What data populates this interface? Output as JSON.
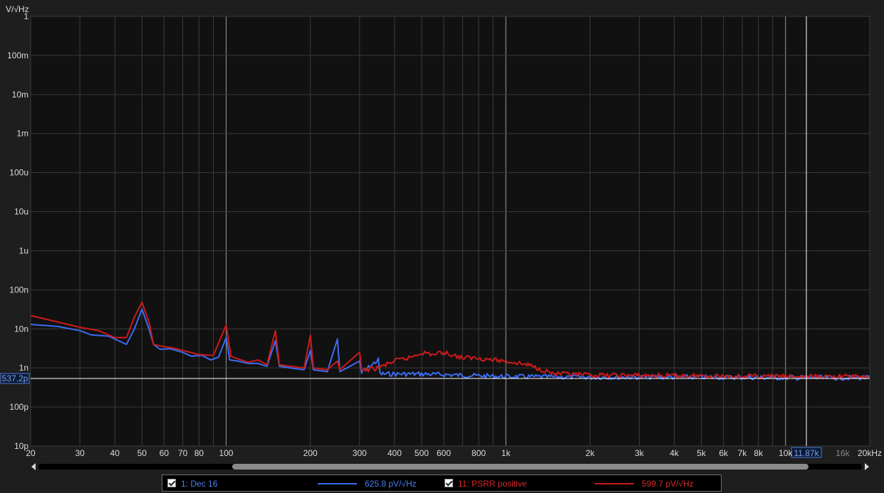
{
  "chart_data": {
    "type": "line",
    "title": "",
    "ylabel": "V/√Hz",
    "xlabel": "",
    "x_scale": "log",
    "y_scale": "log",
    "xlim": [
      20,
      20000
    ],
    "ylim": [
      1e-11,
      1
    ],
    "grid": true,
    "x_ticks": [
      {
        "value": 20,
        "label": "20"
      },
      {
        "value": 30,
        "label": "30"
      },
      {
        "value": 40,
        "label": "40"
      },
      {
        "value": 50,
        "label": "50"
      },
      {
        "value": 60,
        "label": "60"
      },
      {
        "value": 70,
        "label": "70"
      },
      {
        "value": 80,
        "label": "80"
      },
      {
        "value": 100,
        "label": "100"
      },
      {
        "value": 200,
        "label": "200"
      },
      {
        "value": 300,
        "label": "300"
      },
      {
        "value": 400,
        "label": "400"
      },
      {
        "value": 500,
        "label": "500"
      },
      {
        "value": 600,
        "label": "600"
      },
      {
        "value": 800,
        "label": "800"
      },
      {
        "value": 1000,
        "label": "1k"
      },
      {
        "value": 2000,
        "label": "2k"
      },
      {
        "value": 3000,
        "label": "3k"
      },
      {
        "value": 4000,
        "label": "4k"
      },
      {
        "value": 5000,
        "label": "5k"
      },
      {
        "value": 6000,
        "label": "6k"
      },
      {
        "value": 7000,
        "label": "7k"
      },
      {
        "value": 8000,
        "label": "8k"
      },
      {
        "value": 10000,
        "label": "10k"
      },
      {
        "value": 16000,
        "label": "16k"
      },
      {
        "value": 20000,
        "label": "20kHz"
      }
    ],
    "y_ticks": [
      {
        "value": 1,
        "label": "1"
      },
      {
        "value": 0.1,
        "label": "100m"
      },
      {
        "value": 0.01,
        "label": "10m"
      },
      {
        "value": 0.001,
        "label": "1m"
      },
      {
        "value": 0.0001,
        "label": "100u"
      },
      {
        "value": 1e-05,
        "label": "10u"
      },
      {
        "value": 1e-06,
        "label": "1u"
      },
      {
        "value": 1e-07,
        "label": "100n"
      },
      {
        "value": 1e-08,
        "label": "10n"
      },
      {
        "value": 1e-09,
        "label": "1n"
      },
      {
        "value": 1e-10,
        "label": "100p"
      },
      {
        "value": 1e-11,
        "label": "10p"
      }
    ],
    "cursor": {
      "x": 11870,
      "x_label": "11.87k",
      "y": 5.372e-10,
      "y_label": "537.2p"
    },
    "series": [
      {
        "name": "1: Dec 16",
        "color": "#3b6cf0",
        "points": [
          [
            20,
            1.3e-08
          ],
          [
            25,
            1.15e-08
          ],
          [
            30,
            9e-09
          ],
          [
            33,
            7e-09
          ],
          [
            38,
            6.5e-09
          ],
          [
            44,
            4e-09
          ],
          [
            47,
            1e-08
          ],
          [
            50,
            3.2e-08
          ],
          [
            53,
            1e-08
          ],
          [
            55,
            4e-09
          ],
          [
            58,
            3e-09
          ],
          [
            63,
            3.1e-09
          ],
          [
            70,
            2.5e-09
          ],
          [
            75,
            2e-09
          ],
          [
            82,
            2.1e-09
          ],
          [
            88,
            1.6e-09
          ],
          [
            94,
            1.9e-09
          ],
          [
            100,
            6e-09
          ],
          [
            103,
            1.6e-09
          ],
          [
            110,
            1.5e-09
          ],
          [
            120,
            1.3e-09
          ],
          [
            130,
            1.3e-09
          ],
          [
            140,
            1.1e-09
          ],
          [
            150,
            5e-09
          ],
          [
            155,
            1.1e-09
          ],
          [
            170,
            1e-09
          ],
          [
            190,
            9e-10
          ],
          [
            200,
            2.8e-09
          ],
          [
            205,
            9e-10
          ],
          [
            230,
            8e-10
          ],
          [
            250,
            5.5e-09
          ],
          [
            255,
            8e-10
          ],
          [
            300,
            1.5e-09
          ],
          [
            305,
            7.5e-10
          ],
          [
            350,
            1.6e-09
          ],
          [
            355,
            7e-10
          ],
          [
            400,
            7e-10
          ],
          [
            500,
            7e-10
          ],
          [
            700,
            6.5e-10
          ],
          [
            1000,
            6e-10
          ],
          [
            2000,
            5.8e-10
          ],
          [
            5000,
            5.8e-10
          ],
          [
            10000,
            5.6e-10
          ],
          [
            20000,
            5.6e-10
          ]
        ]
      },
      {
        "name": "11: PSRR positive",
        "color": "#cc1a1a",
        "points": [
          [
            20,
            2.2e-08
          ],
          [
            25,
            1.5e-08
          ],
          [
            30,
            1.1e-08
          ],
          [
            35,
            9e-09
          ],
          [
            40,
            6e-09
          ],
          [
            44,
            6e-09
          ],
          [
            47,
            2e-08
          ],
          [
            50,
            4.8e-08
          ],
          [
            53,
            1.5e-08
          ],
          [
            55,
            4e-09
          ],
          [
            60,
            3.5e-09
          ],
          [
            65,
            3.2e-09
          ],
          [
            70,
            2.8e-09
          ],
          [
            80,
            2.2e-09
          ],
          [
            90,
            2.1e-09
          ],
          [
            100,
            1.25e-08
          ],
          [
            104,
            2e-09
          ],
          [
            110,
            1.7e-09
          ],
          [
            120,
            1.4e-09
          ],
          [
            130,
            1.6e-09
          ],
          [
            140,
            1.2e-09
          ],
          [
            150,
            9e-09
          ],
          [
            155,
            1.2e-09
          ],
          [
            170,
            1.1e-09
          ],
          [
            190,
            1e-09
          ],
          [
            200,
            7e-09
          ],
          [
            205,
            1e-09
          ],
          [
            230,
            9e-10
          ],
          [
            250,
            1.5e-09
          ],
          [
            255,
            9e-10
          ],
          [
            300,
            2.5e-09
          ],
          [
            305,
            8.5e-10
          ],
          [
            350,
            1e-09
          ],
          [
            400,
            1.5e-09
          ],
          [
            450,
            1.8e-09
          ],
          [
            500,
            2.5e-09
          ],
          [
            550,
            2.2e-09
          ],
          [
            600,
            2.5e-09
          ],
          [
            700,
            1.8e-09
          ],
          [
            800,
            1.8e-09
          ],
          [
            900,
            1.6e-09
          ],
          [
            1000,
            1.5e-09
          ],
          [
            1200,
            1.2e-09
          ],
          [
            1500,
            7e-10
          ],
          [
            2000,
            6.5e-10
          ],
          [
            5000,
            6.3e-10
          ],
          [
            10000,
            6e-10
          ],
          [
            20000,
            6e-10
          ]
        ]
      }
    ]
  },
  "legend": {
    "items": [
      {
        "label": "1: Dec 16",
        "value": "625.8 pV/√Hz",
        "color": "#3b6cf0"
      },
      {
        "label": "11: PSRR positive",
        "value": "599.7 pV/√Hz",
        "color": "#cc1a1a"
      }
    ]
  },
  "scrollbar": {
    "thumb_start": 0.235,
    "thumb_end": 0.935
  }
}
